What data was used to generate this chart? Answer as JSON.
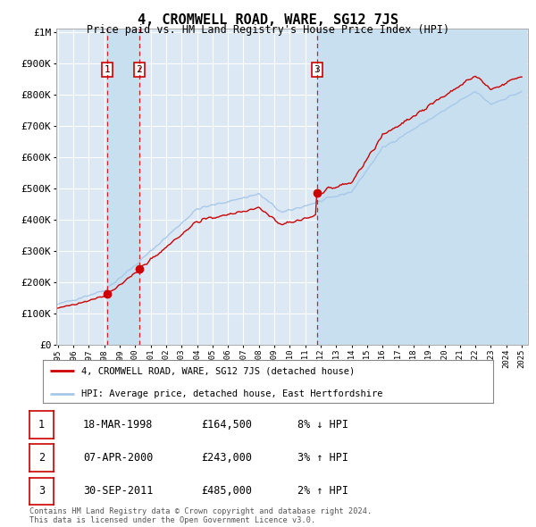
{
  "title": "4, CROMWELL ROAD, WARE, SG12 7JS",
  "subtitle": "Price paid vs. HM Land Registry's House Price Index (HPI)",
  "legend_line1": "4, CROMWELL ROAD, WARE, SG12 7JS (detached house)",
  "legend_line2": "HPI: Average price, detached house, East Hertfordshire",
  "footer1": "Contains HM Land Registry data © Crown copyright and database right 2024.",
  "footer2": "This data is licensed under the Open Government Licence v3.0.",
  "transactions": [
    {
      "num": 1,
      "date": "18-MAR-1998",
      "price": "£164,500",
      "pct": "8% ↓ HPI",
      "year": 1998.21
    },
    {
      "num": 2,
      "date": "07-APR-2000",
      "price": "£243,000",
      "pct": "3% ↑ HPI",
      "year": 2000.27
    },
    {
      "num": 3,
      "date": "30-SEP-2011",
      "price": "£485,000",
      "pct": "2% ↑ HPI",
      "year": 2011.75
    }
  ],
  "ylim_max": 1000000,
  "xlim_start": 1995,
  "xlim_end": 2025.5,
  "background_color": "#dce9f5",
  "red_color": "#cc0000",
  "blue_color": "#a8c8e8",
  "grid_color": "#ffffff",
  "vline_color": "#cc0000",
  "box_color": "#cc0000",
  "shade_color": "#c8dff0"
}
